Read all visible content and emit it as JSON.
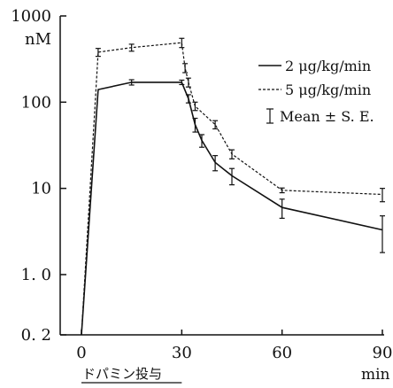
{
  "chart_data": {
    "type": "line",
    "yscale": "log",
    "y_unit": "nM",
    "x_unit": "min",
    "x_note": "ドパミン投与",
    "xlim": [
      0,
      90
    ],
    "ylim": [
      0.2,
      1000
    ],
    "x_ticks": [
      {
        "value": 0,
        "label": "0"
      },
      {
        "value": 30,
        "label": "30"
      },
      {
        "value": 60,
        "label": "60"
      },
      {
        "value": 90,
        "label": "90"
      }
    ],
    "y_ticks": [
      {
        "value": 1000,
        "label": "1000"
      },
      {
        "value": 100,
        "label": "100"
      },
      {
        "value": 10,
        "label": "10"
      },
      {
        "value": 1,
        "label": "1. 0"
      },
      {
        "value": 0.2,
        "label": "0. 2"
      }
    ],
    "infusion_period": [
      0,
      30
    ],
    "series": [
      {
        "name": "2 μg/kg/min",
        "style": "solid",
        "points": [
          {
            "x": 0,
            "y": 0.2,
            "err": 0
          },
          {
            "x": 5,
            "y": 140,
            "err": 0
          },
          {
            "x": 15,
            "y": 170,
            "err": 12
          },
          {
            "x": 30,
            "y": 170,
            "err": 10
          },
          {
            "x": 32,
            "y": 110,
            "err": 12
          },
          {
            "x": 34,
            "y": 55,
            "err": 10
          },
          {
            "x": 36,
            "y": 36,
            "err": 6
          },
          {
            "x": 40,
            "y": 20,
            "err": 4
          },
          {
            "x": 45,
            "y": 14,
            "err": 3
          },
          {
            "x": 60,
            "y": 6,
            "err": 1.5
          },
          {
            "x": 90,
            "y": 3.3,
            "err": 1.5
          }
        ]
      },
      {
        "name": "5 μg/kg/min",
        "style": "dashed",
        "points": [
          {
            "x": 0,
            "y": 0.2,
            "err": 0
          },
          {
            "x": 5,
            "y": 380,
            "err": 40
          },
          {
            "x": 15,
            "y": 430,
            "err": 40
          },
          {
            "x": 30,
            "y": 490,
            "err": 60
          },
          {
            "x": 31,
            "y": 250,
            "err": 30
          },
          {
            "x": 32,
            "y": 170,
            "err": 20
          },
          {
            "x": 34,
            "y": 90,
            "err": 10
          },
          {
            "x": 40,
            "y": 55,
            "err": 6
          },
          {
            "x": 45,
            "y": 25,
            "err": 3
          },
          {
            "x": 60,
            "y": 9.5,
            "err": 0.6
          },
          {
            "x": 90,
            "y": 8.5,
            "err": 1.5
          }
        ]
      }
    ],
    "legend": {
      "position": "top-right",
      "errorbar_label": "Mean ± S. E."
    }
  }
}
